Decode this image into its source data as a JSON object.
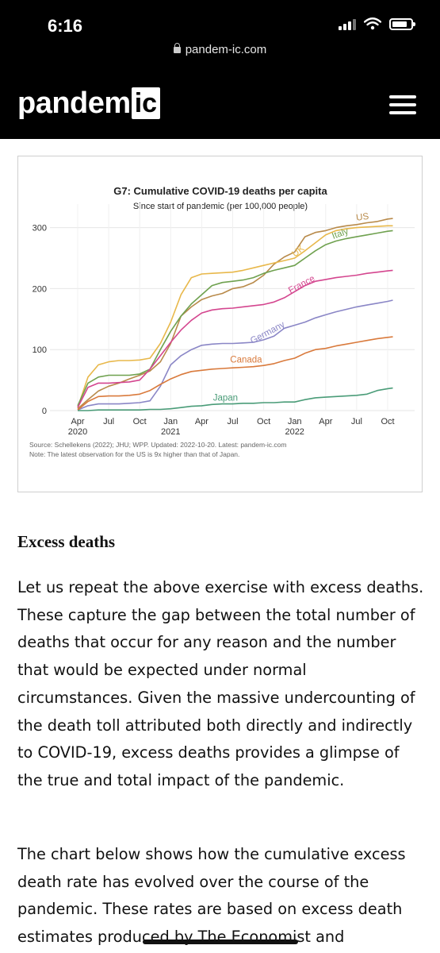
{
  "status_bar": {
    "time": "6:16"
  },
  "browser": {
    "url": "pandem-ic.com"
  },
  "site": {
    "logo_text": "pandem",
    "logo_highlight": "ic"
  },
  "chart": {
    "source_line": "Source: Schellekens (2022); JHU; WPP. Updated: 2022-10-20. Latest: pandem-ic.com",
    "note_line": "Note: The latest observation for the US is 9x higher than that of Japan."
  },
  "chart_data": {
    "type": "line",
    "title": "G7: Cumulative COVID-19 deaths per capita",
    "subtitle": "Since start of pandemic (per 100,000 people)",
    "xlabel": "",
    "ylabel": "",
    "ylim": [
      0,
      320
    ],
    "yticks": [
      0,
      100,
      200,
      300
    ],
    "xticks": [
      {
        "t": 0,
        "label": "Apr",
        "sub": "2020"
      },
      {
        "t": 3,
        "label": "Jul",
        "sub": ""
      },
      {
        "t": 6,
        "label": "Oct",
        "sub": ""
      },
      {
        "t": 9,
        "label": "Jan",
        "sub": "2021"
      },
      {
        "t": 12,
        "label": "Apr",
        "sub": ""
      },
      {
        "t": 15,
        "label": "Jul",
        "sub": ""
      },
      {
        "t": 18,
        "label": "Oct",
        "sub": ""
      },
      {
        "t": 21,
        "label": "Jan",
        "sub": "2022"
      },
      {
        "t": 24,
        "label": "Apr",
        "sub": ""
      },
      {
        "t": 27,
        "label": "Jul",
        "sub": ""
      },
      {
        "t": 30,
        "label": "Oct",
        "sub": ""
      }
    ],
    "x_unit": "months since April 2020",
    "grid": true,
    "legend": "direct labels",
    "series": [
      {
        "name": "US",
        "color": "#b88a4a",
        "x": [
          0,
          1,
          2,
          3,
          4,
          5,
          6,
          7,
          8,
          9,
          10,
          11,
          12,
          13,
          14,
          15,
          16,
          17,
          18,
          19,
          20,
          21,
          22,
          23,
          24,
          25,
          26,
          27,
          28,
          29,
          30,
          30.5
        ],
        "y": [
          3,
          18,
          32,
          40,
          45,
          52,
          58,
          65,
          80,
          110,
          155,
          170,
          182,
          188,
          192,
          200,
          203,
          210,
          222,
          240,
          252,
          260,
          285,
          292,
          295,
          300,
          303,
          305,
          308,
          310,
          314,
          315
        ]
      },
      {
        "name": "UK",
        "color": "#e8b84b",
        "x": [
          0,
          1,
          2,
          3,
          4,
          5,
          6,
          7,
          8,
          9,
          10,
          11,
          12,
          13,
          14,
          15,
          16,
          17,
          18,
          19,
          20,
          21,
          22,
          23,
          24,
          25,
          26,
          27,
          28,
          29,
          30,
          30.5
        ],
        "y": [
          5,
          55,
          75,
          80,
          82,
          82,
          83,
          86,
          110,
          145,
          190,
          218,
          224,
          225,
          226,
          227,
          230,
          234,
          238,
          242,
          246,
          250,
          262,
          275,
          288,
          295,
          298,
          300,
          301,
          302,
          303,
          303
        ]
      },
      {
        "name": "Italy",
        "color": "#6fa14f",
        "x": [
          0,
          1,
          2,
          3,
          4,
          5,
          6,
          7,
          8,
          9,
          10,
          11,
          12,
          13,
          14,
          15,
          16,
          17,
          18,
          19,
          20,
          21,
          22,
          23,
          24,
          25,
          26,
          27,
          28,
          29,
          30,
          30.5
        ],
        "y": [
          8,
          45,
          55,
          58,
          58,
          58,
          60,
          68,
          100,
          130,
          155,
          175,
          190,
          205,
          210,
          212,
          214,
          218,
          225,
          230,
          234,
          238,
          250,
          262,
          272,
          278,
          282,
          285,
          288,
          291,
          294,
          295
        ]
      },
      {
        "name": "France",
        "color": "#d4468f",
        "x": [
          0,
          1,
          2,
          3,
          4,
          5,
          6,
          7,
          8,
          9,
          10,
          11,
          12,
          13,
          14,
          15,
          16,
          17,
          18,
          19,
          20,
          21,
          22,
          23,
          24,
          25,
          26,
          27,
          28,
          29,
          30,
          30.5
        ],
        "y": [
          5,
          38,
          45,
          45,
          46,
          47,
          50,
          68,
          90,
          112,
          132,
          148,
          160,
          165,
          167,
          168,
          170,
          172,
          174,
          178,
          185,
          195,
          205,
          212,
          215,
          218,
          220,
          222,
          225,
          227,
          229,
          230
        ]
      },
      {
        "name": "Germany",
        "color": "#8a86c6",
        "x": [
          0,
          1,
          2,
          3,
          4,
          5,
          6,
          7,
          8,
          9,
          10,
          11,
          12,
          13,
          14,
          15,
          16,
          17,
          18,
          19,
          20,
          21,
          22,
          23,
          24,
          25,
          26,
          27,
          28,
          29,
          30,
          30.5
        ],
        "y": [
          1,
          8,
          11,
          11,
          11,
          12,
          13,
          16,
          40,
          75,
          90,
          100,
          107,
          109,
          110,
          110,
          111,
          112,
          116,
          122,
          135,
          140,
          145,
          152,
          157,
          162,
          166,
          170,
          173,
          176,
          179,
          181
        ]
      },
      {
        "name": "Canada",
        "color": "#d97a3c",
        "x": [
          0,
          1,
          2,
          3,
          4,
          5,
          6,
          7,
          8,
          9,
          10,
          11,
          12,
          13,
          14,
          15,
          16,
          17,
          18,
          19,
          20,
          21,
          22,
          23,
          24,
          25,
          26,
          27,
          28,
          29,
          30,
          30.5
        ],
        "y": [
          1,
          15,
          23,
          24,
          24,
          25,
          27,
          33,
          43,
          52,
          59,
          64,
          66,
          68,
          69,
          70,
          71,
          72,
          74,
          77,
          82,
          86,
          94,
          100,
          102,
          106,
          109,
          112,
          115,
          118,
          120,
          121
        ]
      },
      {
        "name": "Japan",
        "color": "#4a9c78",
        "x": [
          0,
          1,
          2,
          3,
          4,
          5,
          6,
          7,
          8,
          9,
          10,
          11,
          12,
          13,
          14,
          15,
          16,
          17,
          18,
          19,
          20,
          21,
          22,
          23,
          24,
          25,
          26,
          27,
          28,
          29,
          30,
          30.5
        ],
        "y": [
          0,
          0,
          1,
          1,
          1,
          1,
          1,
          2,
          2,
          3,
          5,
          7,
          8,
          10,
          11,
          11,
          12,
          12,
          13,
          13,
          14,
          14,
          18,
          21,
          22,
          23,
          24,
          25,
          27,
          33,
          36,
          37
        ]
      }
    ]
  },
  "article": {
    "heading": "Excess deaths",
    "p1": "Let us repeat the above exercise with excess deaths. These capture the gap between the total number of deaths that occur for any reason and the number that would be expected under normal circumstances.  Given the massive undercounting of the death toll attributed both directly and indirectly to COVID-19, excess deaths provides a glimpse of the true and total impact of the pandemic.",
    "p2": "The chart below shows how the cumulative excess death rate has evolved over the course of the pandemic. These rates are based on excess death estimates produced by The Economist and"
  }
}
